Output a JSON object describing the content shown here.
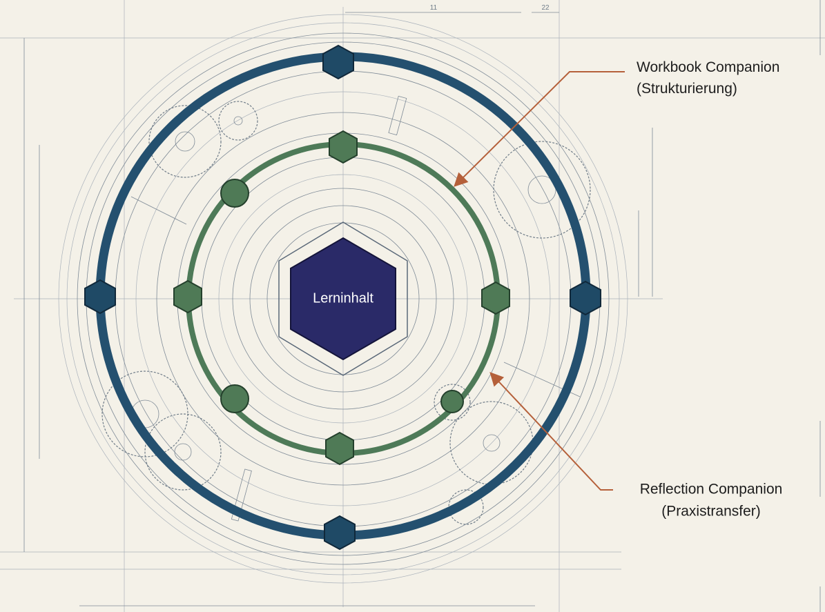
{
  "center": {
    "label": "Lerninhalt"
  },
  "callouts": [
    {
      "title": "Workbook Companion",
      "subtitle": "(Strukturierung)"
    },
    {
      "title": "Reflection Companion",
      "subtitle": "(Praxistransfer)"
    }
  ],
  "dimensions": [
    "11",
    "22"
  ]
}
